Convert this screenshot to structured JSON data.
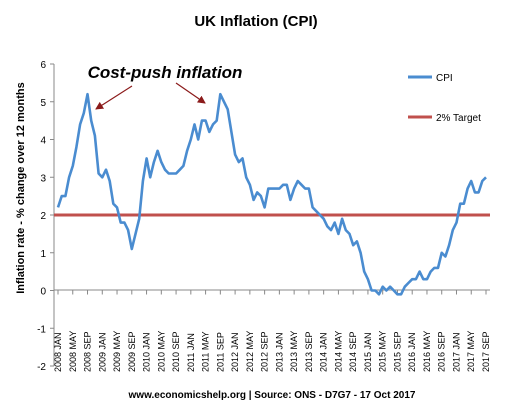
{
  "chart_data": {
    "type": "line",
    "title": "UK Inflation (CPI)",
    "ylabel": "Inflation rate  - % change over 12 months",
    "xlabel": "",
    "ylim": [
      -2,
      6
    ],
    "yticks": [
      -2,
      -1,
      0,
      1,
      2,
      3,
      4,
      5,
      6
    ],
    "grid": false,
    "legend_position": "top-right",
    "annotation": "Cost-push inflation",
    "source": "www.economicshelp.org | Source: ONS - D7G7 - 17 Oct 2017",
    "x_tick_labels": [
      "2008 JAN",
      "2008 MAY",
      "2008 SEP",
      "2009 JAN",
      "2009 MAY",
      "2009 SEP",
      "2010 JAN",
      "2010 MAY",
      "2010 SEP",
      "2011 JAN",
      "2011 MAY",
      "2011 SEP",
      "2012 JAN",
      "2012 MAY",
      "2012 SEP",
      "2013 JAN",
      "2013 MAY",
      "2013 SEP",
      "2014 JAN",
      "2014 MAY",
      "2014 SEP",
      "2015 JAN",
      "2015 MAY",
      "2015 SEP",
      "2016 JAN",
      "2016 MAY",
      "2016 SEP",
      "2017 JAN",
      "2017 MAY",
      "2017 SEP"
    ],
    "series": [
      {
        "name": "CPI",
        "color": "#4a8cd0",
        "start": "2008 JAN",
        "frequency": "monthly",
        "values": [
          2.2,
          2.5,
          2.5,
          3.0,
          3.3,
          3.8,
          4.4,
          4.7,
          5.2,
          4.5,
          4.1,
          3.1,
          3.0,
          3.2,
          2.9,
          2.3,
          2.2,
          1.8,
          1.8,
          1.6,
          1.1,
          1.5,
          1.9,
          2.9,
          3.5,
          3.0,
          3.4,
          3.7,
          3.4,
          3.2,
          3.1,
          3.1,
          3.1,
          3.2,
          3.3,
          3.7,
          4.0,
          4.4,
          4.0,
          4.5,
          4.5,
          4.2,
          4.4,
          4.5,
          5.2,
          5.0,
          4.8,
          4.2,
          3.6,
          3.4,
          3.5,
          3.0,
          2.8,
          2.4,
          2.6,
          2.5,
          2.2,
          2.7,
          2.7,
          2.7,
          2.7,
          2.8,
          2.8,
          2.4,
          2.7,
          2.9,
          2.8,
          2.7,
          2.7,
          2.2,
          2.1,
          2.0,
          1.9,
          1.7,
          1.6,
          1.8,
          1.5,
          1.9,
          1.6,
          1.5,
          1.2,
          1.3,
          1.0,
          0.5,
          0.3,
          0.0,
          0.0,
          -0.1,
          0.1,
          0.0,
          0.1,
          0.0,
          -0.1,
          -0.1,
          0.1,
          0.2,
          0.3,
          0.3,
          0.5,
          0.3,
          0.3,
          0.5,
          0.6,
          0.6,
          1.0,
          0.9,
          1.2,
          1.6,
          1.8,
          2.3,
          2.3,
          2.7,
          2.9,
          2.6,
          2.6,
          2.9,
          3.0
        ]
      },
      {
        "name": "2% Target",
        "color": "#c0504d",
        "value": 2
      }
    ]
  }
}
